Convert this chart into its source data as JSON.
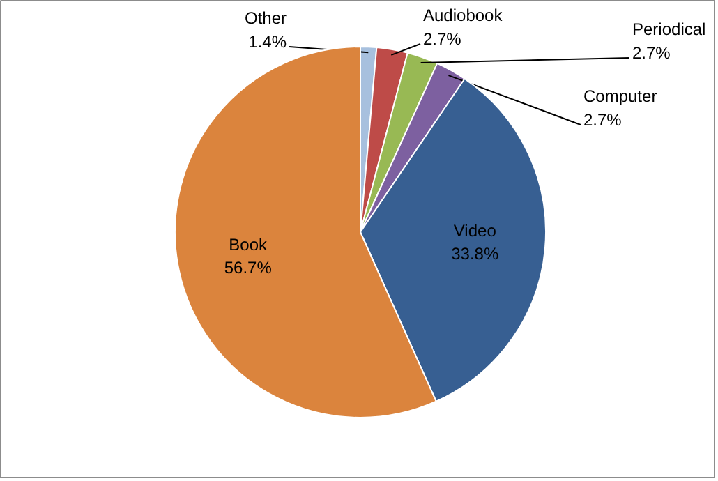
{
  "chart_data": {
    "type": "pie",
    "categories": [
      "Other",
      "Audiobook",
      "Periodical",
      "Computer",
      "Video",
      "Book"
    ],
    "values": [
      1.4,
      2.7,
      2.7,
      2.7,
      33.8,
      56.7
    ],
    "colors": [
      "#a7c0de",
      "#be4b48",
      "#98b954",
      "#7d60a0",
      "#375f92",
      "#db843d"
    ],
    "value_labels": [
      "1.4%",
      "2.7%",
      "2.7%",
      "2.7%",
      "33.8%",
      "56.7%"
    ]
  }
}
